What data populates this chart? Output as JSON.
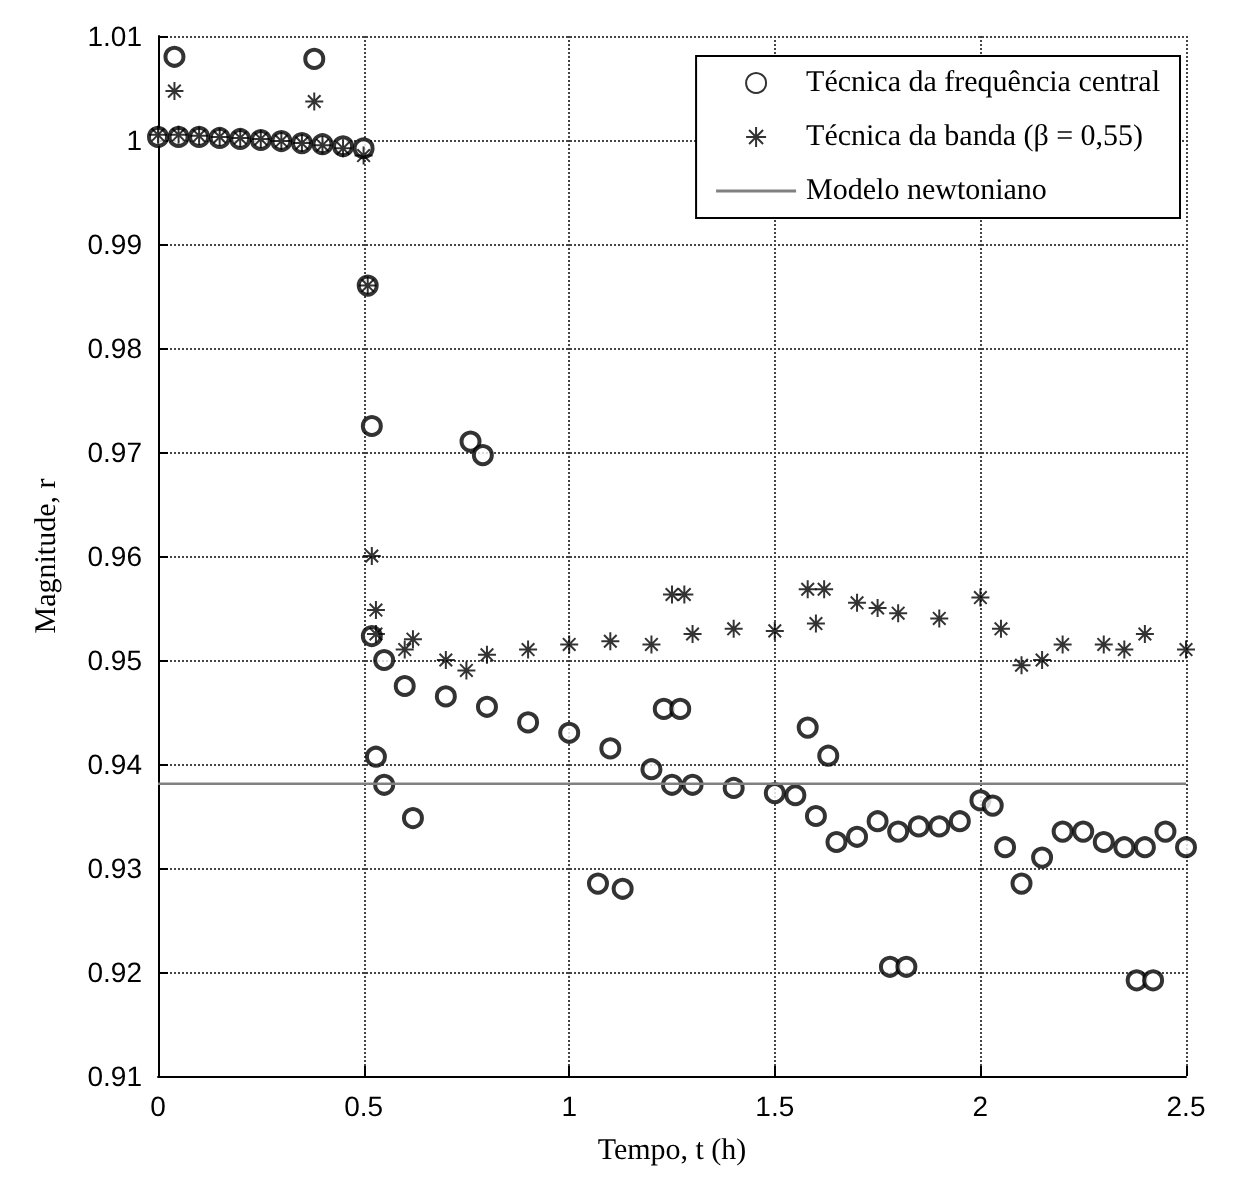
{
  "chart_data": {
    "type": "scatter",
    "xlabel": "Tempo, t (h)",
    "ylabel": "Magnitude, r",
    "xlim": [
      0,
      2.5
    ],
    "ylim": [
      0.91,
      1.01
    ],
    "xticks": [
      0,
      0.5,
      1,
      1.5,
      2,
      2.5
    ],
    "yticks": [
      0.91,
      0.92,
      0.93,
      0.94,
      0.95,
      0.96,
      0.97,
      0.98,
      0.99,
      1,
      1.01
    ],
    "grid": true,
    "legend": "top right",
    "series": [
      {
        "name": "Técnica da frequência central",
        "color": "#000000",
        "marker": "circle",
        "x": [
          0,
          0.04,
          0.05,
          0.1,
          0.15,
          0.2,
          0.25,
          0.3,
          0.35,
          0.38,
          0.4,
          0.45,
          0.5,
          0.51,
          0.52,
          0.52,
          0.53,
          0.55,
          0.55,
          0.6,
          0.62,
          0.7,
          0.76,
          0.79,
          0.8,
          0.9,
          1.0,
          1.07,
          1.1,
          1.13,
          1.2,
          1.23,
          1.25,
          1.27,
          1.3,
          1.4,
          1.5,
          1.55,
          1.58,
          1.6,
          1.63,
          1.65,
          1.7,
          1.75,
          1.78,
          1.8,
          1.82,
          1.85,
          1.9,
          1.95,
          2.0,
          2.03,
          2.06,
          2.1,
          2.15,
          2.2,
          2.25,
          2.3,
          2.35,
          2.38,
          2.4,
          2.42,
          2.45,
          2.5
        ],
        "values": [
          1.0003,
          1.008,
          1.0003,
          1.0003,
          1.0002,
          1.0001,
          1.0,
          0.9999,
          0.9997,
          1.0078,
          0.9996,
          0.9994,
          0.9992,
          0.986,
          0.9725,
          0.9523,
          0.9407,
          0.938,
          0.95,
          0.9475,
          0.9348,
          0.9465,
          0.971,
          0.9697,
          0.9455,
          0.944,
          0.943,
          0.9285,
          0.9415,
          0.928,
          0.9395,
          0.9453,
          0.938,
          0.9453,
          0.938,
          0.9377,
          0.9372,
          0.937,
          0.9435,
          0.935,
          0.9408,
          0.9325,
          0.933,
          0.9345,
          0.9205,
          0.9335,
          0.9205,
          0.934,
          0.934,
          0.9345,
          0.9365,
          0.936,
          0.932,
          0.9285,
          0.931,
          0.9335,
          0.9335,
          0.9325,
          0.932,
          0.9192,
          0.932,
          0.9192,
          0.9335,
          0.932
        ]
      },
      {
        "name": "Técnica da banda (β = 0,55)",
        "color": "#000000",
        "marker": "cross",
        "x": [
          0,
          0.04,
          0.05,
          0.1,
          0.15,
          0.2,
          0.25,
          0.3,
          0.35,
          0.38,
          0.4,
          0.45,
          0.5,
          0.51,
          0.52,
          0.53,
          0.53,
          0.6,
          0.62,
          0.7,
          0.75,
          0.8,
          0.9,
          1.0,
          1.1,
          1.2,
          1.25,
          1.28,
          1.3,
          1.4,
          1.5,
          1.58,
          1.6,
          1.62,
          1.7,
          1.75,
          1.8,
          1.9,
          2.0,
          2.05,
          2.1,
          2.15,
          2.2,
          2.3,
          2.35,
          2.4,
          2.5
        ],
        "values": [
          1.0005,
          1.0047,
          1.0005,
          1.0004,
          1.0003,
          1.0002,
          1.0001,
          0.9999,
          0.9997,
          1.0037,
          0.9995,
          0.9992,
          0.9985,
          0.986,
          0.96,
          0.9548,
          0.9525,
          0.951,
          0.952,
          0.95,
          0.949,
          0.9505,
          0.951,
          0.9515,
          0.9518,
          0.9515,
          0.9563,
          0.9563,
          0.9525,
          0.953,
          0.9528,
          0.9568,
          0.9535,
          0.9568,
          0.9555,
          0.955,
          0.9545,
          0.954,
          0.956,
          0.953,
          0.9495,
          0.95,
          0.9515,
          0.9515,
          0.951,
          0.9525,
          0.951
        ]
      }
    ],
    "ref_lines": [
      {
        "axis": "y",
        "value": 0.9381,
        "label": "Modelo newtoniano",
        "color": "#808080",
        "line_style": "solid"
      }
    ]
  }
}
